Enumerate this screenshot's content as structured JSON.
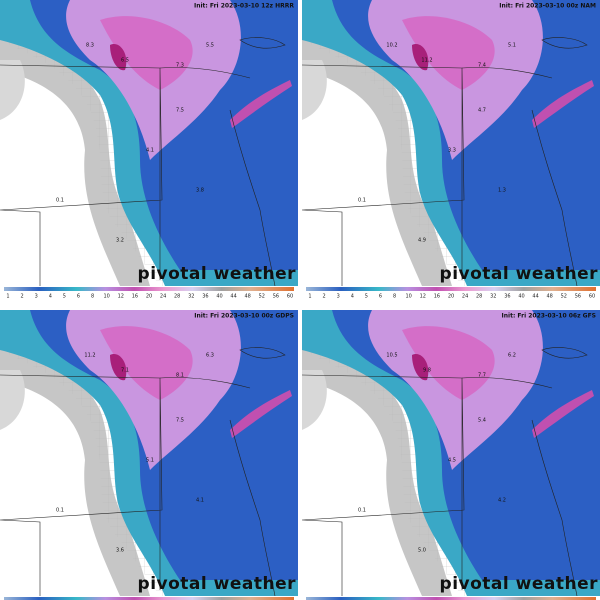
{
  "panels": [
    {
      "init": "Init: Fri 2023-03-10 12z HRRR",
      "labels": [
        "8.3",
        "6.5",
        "7.3",
        "5.5",
        "7.5",
        "4.1",
        "3.8",
        "0.1",
        "3.2"
      ]
    },
    {
      "init": "Init: Fri 2023-03-10 00z NAM",
      "labels": [
        "10.2",
        "11.2",
        "7.4",
        "5.1",
        "4.7",
        "3.3",
        "1.3",
        "0.1",
        "4.9"
      ]
    },
    {
      "init": "Init: Fri 2023-03-10 00z GDPS",
      "labels": [
        "11.2",
        "7.1",
        "8.1",
        "6.3",
        "7.5",
        "5.1",
        "4.1",
        "0.1",
        "3.6"
      ]
    },
    {
      "init": "Init: Fri 2023-03-10 06z GFS",
      "labels": [
        "10.5",
        "9.8",
        "7.7",
        "6.2",
        "5.4",
        "4.5",
        "4.2",
        "0.1",
        "5.0"
      ]
    }
  ],
  "colorbar": [
    "1",
    "2",
    "3",
    "4",
    "5",
    "6",
    "8",
    "10",
    "12",
    "16",
    "20",
    "24",
    "28",
    "32",
    "36",
    "40",
    "44",
    "48",
    "52",
    "56",
    "60"
  ],
  "watermark": "pivotal weather"
}
